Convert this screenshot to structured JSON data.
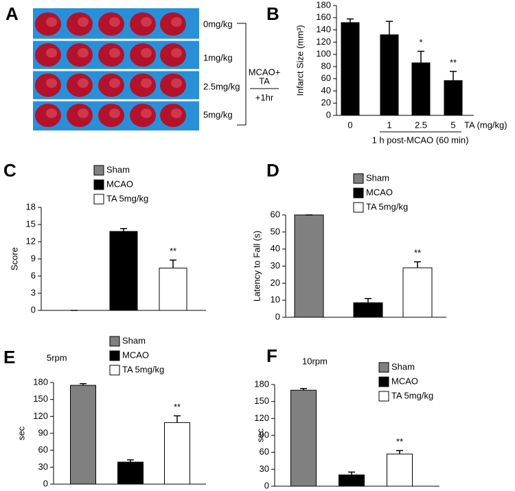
{
  "panel_a": {
    "panel": "A",
    "doses": [
      "0mg/kg",
      "1mg/kg",
      "2.5mg/kg",
      "5mg/kg"
    ],
    "treatment": [
      "MCAO+",
      "TA"
    ],
    "time": "+1hr"
  },
  "chart_data": [
    {
      "type": "bar",
      "panel": "B",
      "y_label": "Infarct Size (mm³)",
      "categories": [
        "0",
        "1",
        "2.5",
        "5"
      ],
      "x_unit": "TA (mg/kg)",
      "group_label": "1 h post-MCAO (60 min)",
      "values": [
        152,
        132,
        86,
        57
      ],
      "errors": [
        6,
        22,
        19,
        15
      ],
      "annotations": [
        null,
        null,
        "*",
        "**"
      ],
      "color": "#000000",
      "ylim": [
        0,
        180
      ],
      "yticks": [
        0,
        20,
        40,
        60,
        80,
        100,
        120,
        140,
        160,
        180
      ]
    },
    {
      "type": "bar",
      "panel": "C",
      "y_label": "Score",
      "series": [
        {
          "name": "Sham",
          "color": "#808080",
          "values": [
            0
          ],
          "errors": [
            0
          ]
        },
        {
          "name": "MCAO",
          "color": "#000000",
          "values": [
            13.8
          ],
          "errors": [
            0.5
          ]
        },
        {
          "name": "TA 5mg/kg",
          "color": "#ffffff",
          "values": [
            7.4
          ],
          "errors": [
            1.4
          ]
        }
      ],
      "annotations": [
        null,
        null,
        "**"
      ],
      "ylim": [
        0,
        18
      ],
      "yticks": [
        0,
        3,
        6,
        9,
        12,
        15,
        18
      ]
    },
    {
      "type": "bar",
      "panel": "D",
      "y_label": "Latency to Fall (s)",
      "series": [
        {
          "name": "Sham",
          "color": "#808080",
          "values": [
            60
          ],
          "errors": [
            0
          ]
        },
        {
          "name": "MCAO",
          "color": "#000000",
          "values": [
            8.5
          ],
          "errors": [
            2.5
          ]
        },
        {
          "name": "TA 5mg/kg",
          "color": "#ffffff",
          "values": [
            29
          ],
          "errors": [
            3.5
          ]
        }
      ],
      "annotations": [
        null,
        null,
        "**"
      ],
      "ylim": [
        0,
        60
      ],
      "yticks": [
        0,
        10,
        20,
        30,
        40,
        50,
        60
      ]
    },
    {
      "type": "bar",
      "panel": "E",
      "subtitle": "5rpm",
      "y_label": "sec",
      "series": [
        {
          "name": "Sham",
          "color": "#808080",
          "values": [
            175
          ],
          "errors": [
            3
          ]
        },
        {
          "name": "MCAO",
          "color": "#000000",
          "values": [
            39
          ],
          "errors": [
            4
          ]
        },
        {
          "name": "TA 5mg/kg",
          "color": "#ffffff",
          "values": [
            109
          ],
          "errors": [
            12
          ]
        }
      ],
      "annotations": [
        null,
        null,
        "**"
      ],
      "ylim": [
        0,
        180
      ],
      "yticks": [
        0,
        30,
        60,
        90,
        120,
        150,
        180
      ]
    },
    {
      "type": "bar",
      "panel": "F",
      "subtitle": "10rpm",
      "y_label": "sec",
      "series": [
        {
          "name": "Sham",
          "color": "#808080",
          "values": [
            170
          ],
          "errors": [
            3
          ]
        },
        {
          "name": "MCAO",
          "color": "#000000",
          "values": [
            20
          ],
          "errors": [
            5
          ]
        },
        {
          "name": "TA 5mg/kg",
          "color": "#ffffff",
          "values": [
            57
          ],
          "errors": [
            6
          ]
        }
      ],
      "annotations": [
        null,
        null,
        "**"
      ],
      "ylim": [
        0,
        180
      ],
      "yticks": [
        0,
        30,
        60,
        90,
        120,
        150,
        180
      ]
    }
  ]
}
